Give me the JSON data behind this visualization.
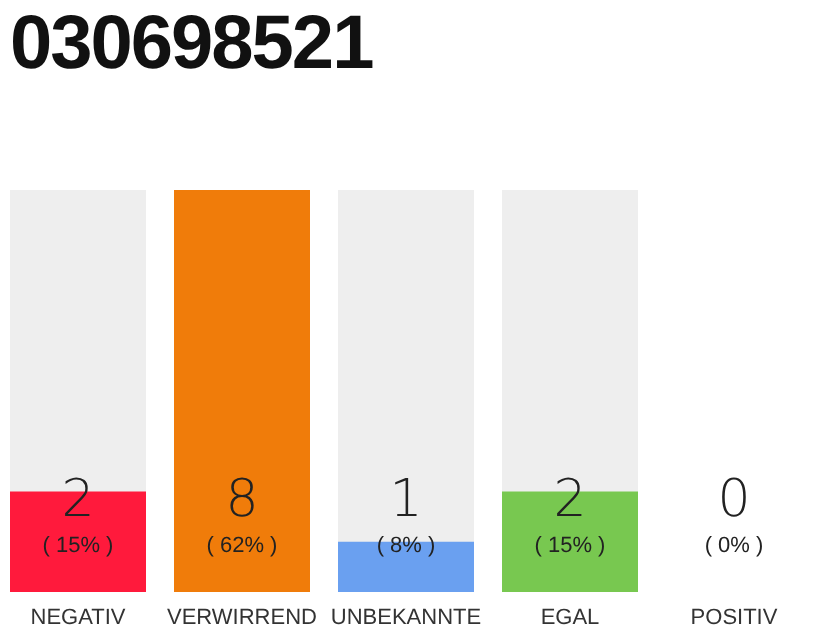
{
  "chart_data": {
    "type": "bar",
    "title": "030698521",
    "categories": [
      "NEGATIV",
      "VERWIRREND",
      "UNBEKANNTE",
      "EGAL",
      "POSITIV"
    ],
    "values": [
      2,
      8,
      1,
      2,
      0
    ],
    "colors": [
      "#ff1a3c",
      "#f07c0a",
      "#6aa0f0",
      "#78c850",
      "#bbbbbb"
    ],
    "value_labels": [
      "2 ( 15% )",
      "8 ( 62% )",
      "1 ( 8% )",
      "2 ( 15% )",
      "0 ( 0% )"
    ],
    "grid": false,
    "legend": false
  }
}
